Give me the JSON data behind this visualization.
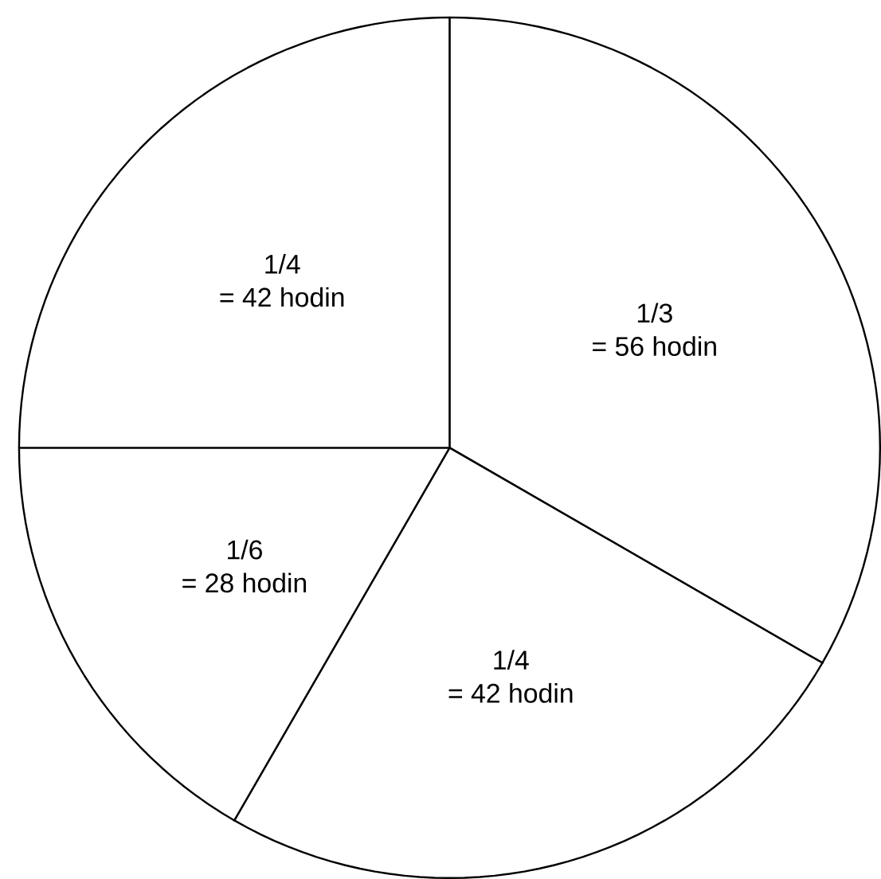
{
  "chart_data": {
    "type": "pie",
    "categories": [
      "1/3",
      "1/4",
      "1/6",
      "1/4"
    ],
    "values": [
      56,
      42,
      28,
      42
    ],
    "value_labels": [
      "= 56 hodin",
      "= 42 hodin",
      "= 28 hodin",
      "= 42 hodin"
    ],
    "colors": [
      "#ffffff",
      "#ffffff",
      "#ffffff",
      "#ffffff"
    ]
  }
}
